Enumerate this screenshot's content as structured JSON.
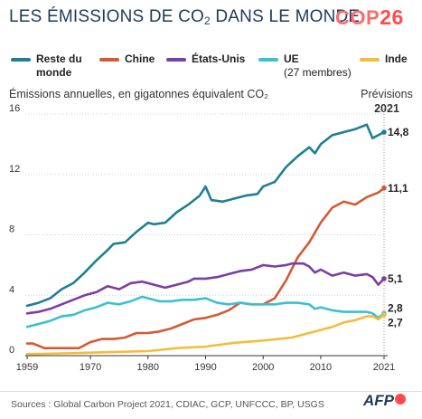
{
  "header": {
    "title_main": "LES ÉMISSIONS DE CO",
    "title_sub": "2",
    "title_end": " DANS LE MONDE",
    "logo_text": "COP",
    "logo_number": "26"
  },
  "legend": [
    {
      "label": "Reste du",
      "label2": "monde",
      "sublabel": "",
      "color": "#1e7f93"
    },
    {
      "label": "Chine",
      "label2": "",
      "sublabel": "",
      "color": "#d35a35"
    },
    {
      "label": "États-Unis",
      "label2": "",
      "sublabel": "",
      "color": "#7b3fa0"
    },
    {
      "label": "UE",
      "label2": "",
      "sublabel": "(27 membres)",
      "color": "#3dbfd2"
    },
    {
      "label": "Inde",
      "label2": "",
      "sublabel": "",
      "color": "#f2bd3c"
    }
  ],
  "subtitle": "Émissions annuelles, en gigatonnes équivalent CO₂",
  "forecast": {
    "label": "Prévisions",
    "year": "2021"
  },
  "source": "Sources : Global Carbon Project 2021, CDIAC, GCP, UNFCCC, BP, USGS",
  "agency": "AFP",
  "chart_data": {
    "type": "line",
    "title": "Les émissions de CO2 dans le monde",
    "ylabel": "Émissions annuelles, en gigatonnes équivalent CO₂",
    "xlim": [
      1959,
      2021
    ],
    "ylim": [
      0,
      16
    ],
    "x_ticks": [
      1959,
      1970,
      1980,
      1990,
      2000,
      2010,
      2021
    ],
    "y_ticks": [
      0,
      4,
      8,
      12,
      16
    ],
    "grid": true,
    "forecast_year": 2021,
    "series": [
      {
        "name": "Reste du monde",
        "color": "#1e7f93",
        "end_label": "14,8",
        "points": [
          [
            1959,
            3.3
          ],
          [
            1961,
            3.5
          ],
          [
            1963,
            3.8
          ],
          [
            1965,
            4.4
          ],
          [
            1967,
            4.8
          ],
          [
            1969,
            5.5
          ],
          [
            1971,
            6.3
          ],
          [
            1973,
            7.0
          ],
          [
            1974,
            7.4
          ],
          [
            1976,
            7.5
          ],
          [
            1978,
            8.2
          ],
          [
            1980,
            8.8
          ],
          [
            1981,
            8.7
          ],
          [
            1983,
            8.8
          ],
          [
            1985,
            9.5
          ],
          [
            1987,
            10.0
          ],
          [
            1989,
            10.6
          ],
          [
            1990,
            11.2
          ],
          [
            1991,
            10.3
          ],
          [
            1993,
            10.2
          ],
          [
            1995,
            10.4
          ],
          [
            1997,
            10.6
          ],
          [
            1999,
            10.7
          ],
          [
            2000,
            11.2
          ],
          [
            2002,
            11.5
          ],
          [
            2004,
            12.5
          ],
          [
            2006,
            13.2
          ],
          [
            2008,
            13.8
          ],
          [
            2009,
            13.4
          ],
          [
            2010,
            14.0
          ],
          [
            2012,
            14.6
          ],
          [
            2014,
            14.8
          ],
          [
            2016,
            15.0
          ],
          [
            2018,
            15.3
          ],
          [
            2019,
            14.4
          ],
          [
            2020,
            14.6
          ],
          [
            2021,
            14.8
          ]
        ]
      },
      {
        "name": "Chine",
        "color": "#d35a35",
        "end_label": "11,1",
        "points": [
          [
            1959,
            0.8
          ],
          [
            1960,
            0.8
          ],
          [
            1962,
            0.5
          ],
          [
            1964,
            0.5
          ],
          [
            1966,
            0.5
          ],
          [
            1968,
            0.5
          ],
          [
            1970,
            0.9
          ],
          [
            1972,
            1.1
          ],
          [
            1974,
            1.1
          ],
          [
            1976,
            1.2
          ],
          [
            1978,
            1.5
          ],
          [
            1980,
            1.5
          ],
          [
            1982,
            1.6
          ],
          [
            1984,
            1.8
          ],
          [
            1986,
            2.1
          ],
          [
            1988,
            2.4
          ],
          [
            1990,
            2.5
          ],
          [
            1992,
            2.7
          ],
          [
            1994,
            3.0
          ],
          [
            1996,
            3.5
          ],
          [
            1998,
            3.4
          ],
          [
            2000,
            3.4
          ],
          [
            2002,
            3.8
          ],
          [
            2004,
            5.0
          ],
          [
            2006,
            6.5
          ],
          [
            2008,
            7.5
          ],
          [
            2010,
            8.8
          ],
          [
            2012,
            9.8
          ],
          [
            2014,
            10.2
          ],
          [
            2016,
            10.0
          ],
          [
            2018,
            10.5
          ],
          [
            2020,
            10.8
          ],
          [
            2021,
            11.1
          ]
        ]
      },
      {
        "name": "États-Unis",
        "color": "#7b3fa0",
        "end_label": "5,1",
        "points": [
          [
            1959,
            2.8
          ],
          [
            1961,
            2.9
          ],
          [
            1963,
            3.1
          ],
          [
            1965,
            3.4
          ],
          [
            1967,
            3.7
          ],
          [
            1969,
            4.0
          ],
          [
            1971,
            4.2
          ],
          [
            1973,
            4.6
          ],
          [
            1975,
            4.4
          ],
          [
            1977,
            4.8
          ],
          [
            1979,
            4.9
          ],
          [
            1980,
            4.8
          ],
          [
            1982,
            4.6
          ],
          [
            1983,
            4.5
          ],
          [
            1985,
            4.7
          ],
          [
            1987,
            4.9
          ],
          [
            1988,
            5.1
          ],
          [
            1990,
            5.1
          ],
          [
            1992,
            5.2
          ],
          [
            1994,
            5.4
          ],
          [
            1996,
            5.6
          ],
          [
            1998,
            5.7
          ],
          [
            2000,
            6.0
          ],
          [
            2002,
            5.9
          ],
          [
            2004,
            6.0
          ],
          [
            2005,
            6.1
          ],
          [
            2007,
            6.1
          ],
          [
            2008,
            5.9
          ],
          [
            2009,
            5.5
          ],
          [
            2010,
            5.7
          ],
          [
            2012,
            5.3
          ],
          [
            2014,
            5.5
          ],
          [
            2016,
            5.3
          ],
          [
            2018,
            5.4
          ],
          [
            2019,
            5.2
          ],
          [
            2020,
            4.7
          ],
          [
            2021,
            5.1
          ]
        ]
      },
      {
        "name": "UE (27 membres)",
        "color": "#3dbfd2",
        "end_label": "2,8",
        "points": [
          [
            1959,
            1.9
          ],
          [
            1961,
            2.1
          ],
          [
            1963,
            2.3
          ],
          [
            1965,
            2.6
          ],
          [
            1967,
            2.7
          ],
          [
            1969,
            3.0
          ],
          [
            1971,
            3.2
          ],
          [
            1973,
            3.5
          ],
          [
            1975,
            3.4
          ],
          [
            1977,
            3.6
          ],
          [
            1979,
            3.9
          ],
          [
            1980,
            3.8
          ],
          [
            1982,
            3.6
          ],
          [
            1984,
            3.6
          ],
          [
            1986,
            3.7
          ],
          [
            1988,
            3.7
          ],
          [
            1990,
            3.8
          ],
          [
            1992,
            3.5
          ],
          [
            1994,
            3.4
          ],
          [
            1996,
            3.5
          ],
          [
            1998,
            3.4
          ],
          [
            2000,
            3.4
          ],
          [
            2002,
            3.4
          ],
          [
            2004,
            3.5
          ],
          [
            2006,
            3.5
          ],
          [
            2008,
            3.4
          ],
          [
            2009,
            3.1
          ],
          [
            2010,
            3.2
          ],
          [
            2012,
            3.0
          ],
          [
            2014,
            2.9
          ],
          [
            2016,
            2.9
          ],
          [
            2018,
            2.9
          ],
          [
            2019,
            2.8
          ],
          [
            2020,
            2.5
          ],
          [
            2021,
            2.8
          ]
        ]
      },
      {
        "name": "Inde",
        "color": "#f2bd3c",
        "end_label": "2,7",
        "points": [
          [
            1959,
            0.1
          ],
          [
            1965,
            0.15
          ],
          [
            1970,
            0.2
          ],
          [
            1975,
            0.25
          ],
          [
            1980,
            0.3
          ],
          [
            1985,
            0.5
          ],
          [
            1990,
            0.6
          ],
          [
            1995,
            0.85
          ],
          [
            2000,
            1.0
          ],
          [
            2005,
            1.2
          ],
          [
            2008,
            1.5
          ],
          [
            2010,
            1.7
          ],
          [
            2012,
            1.9
          ],
          [
            2014,
            2.2
          ],
          [
            2016,
            2.35
          ],
          [
            2018,
            2.6
          ],
          [
            2019,
            2.6
          ],
          [
            2020,
            2.4
          ],
          [
            2021,
            2.7
          ]
        ]
      }
    ]
  }
}
